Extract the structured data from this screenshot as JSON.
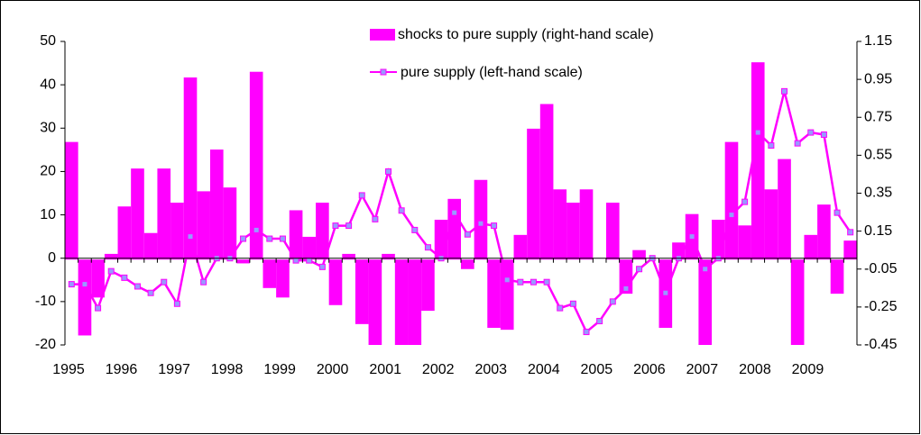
{
  "chart_data": {
    "type": "bar",
    "categories": [
      "1995",
      null,
      null,
      null,
      "1996",
      null,
      null,
      null,
      "1997",
      null,
      null,
      null,
      "1998",
      null,
      null,
      null,
      "1999",
      null,
      null,
      null,
      "2000",
      null,
      null,
      null,
      "2001",
      null,
      null,
      null,
      "2002",
      null,
      null,
      null,
      "2003",
      null,
      null,
      null,
      "2004",
      null,
      null,
      null,
      "2005",
      null,
      null,
      null,
      "2006",
      null,
      null,
      null,
      "2007",
      null,
      null,
      null,
      "2008",
      null,
      null,
      null,
      "2009",
      null,
      null,
      null
    ],
    "series": [
      {
        "name": "shocks to pure supply (right-hand scale)",
        "type": "bar",
        "axis": "y2",
        "color": "#ff00ff",
        "values": [
          0.62,
          -0.4,
          -0.2,
          0.03,
          0.28,
          0.48,
          0.14,
          0.48,
          0.3,
          0.96,
          0.36,
          0.58,
          0.38,
          -0.02,
          0.99,
          -0.15,
          -0.2,
          0.26,
          0.12,
          0.3,
          -0.24,
          0.03,
          -0.34,
          -0.45,
          0.03,
          -0.45,
          -0.45,
          -0.27,
          0.21,
          0.32,
          -0.05,
          0.42,
          -0.36,
          -0.37,
          0.13,
          0.69,
          0.82,
          0.37,
          0.3,
          0.37,
          0,
          0.3,
          -0.18,
          0.05,
          0,
          -0.36,
          0.09,
          0.24,
          -0.45,
          0.21,
          0.62,
          0.18,
          1.04,
          0.37,
          0.53,
          -0.45,
          0.13,
          0.29,
          -0.18,
          0.1
        ]
      },
      {
        "name": "pure supply (left-hand scale)",
        "type": "line",
        "color": "#ff00ff",
        "marker_color": "#9999ff",
        "values": [
          -6,
          -6,
          -11.5,
          -3,
          -4.5,
          -6.5,
          -8,
          -5.5,
          -10.5,
          5,
          -5.5,
          0,
          0,
          4.5,
          6.5,
          4.5,
          4.5,
          -0.5,
          -0.5,
          -2,
          7.5,
          7.5,
          14.5,
          9,
          20,
          11,
          6.5,
          2.5,
          0,
          10.5,
          5.5,
          8,
          7.5,
          -5,
          -5.5,
          -5.5,
          -5.5,
          -11.5,
          -10.5,
          -17,
          -14.5,
          -10,
          -7,
          -2.5,
          0,
          -8,
          0,
          5,
          -2.5,
          0,
          10,
          13,
          29,
          26,
          38.5,
          26.5,
          29,
          28.5,
          10.5,
          6
        ]
      }
    ],
    "ylim": [
      -20,
      50
    ],
    "yticks": [
      -20,
      -10,
      0,
      10,
      20,
      30,
      40,
      50
    ],
    "y2lim": [
      -0.45,
      1.15
    ],
    "y2ticks": [
      -0.45,
      -0.25,
      -0.05,
      0.15,
      0.35,
      0.55,
      0.75,
      0.95,
      1.15
    ],
    "grid": false
  }
}
